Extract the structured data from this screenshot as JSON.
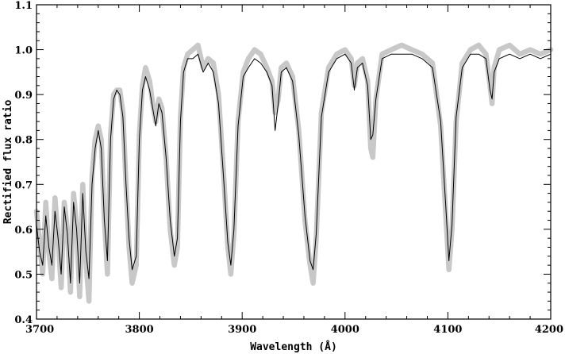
{
  "chart_data": {
    "type": "line",
    "title": "",
    "xlabel": "Wavelength (Å)",
    "ylabel": "Rectified flux ratio",
    "xlim": [
      3700,
      4200
    ],
    "ylim": [
      0.4,
      1.1
    ],
    "x_ticks": [
      3700,
      3800,
      3900,
      4000,
      4100,
      4200
    ],
    "x_tick_labels": [
      "3700",
      "3800",
      "3900",
      "4000",
      "4100",
      "4200"
    ],
    "y_ticks": [
      0.4,
      0.5,
      0.6,
      0.7,
      0.8,
      0.9,
      1.0,
      1.1
    ],
    "y_tick_labels": [
      "0.4",
      "0.5",
      "0.6",
      "0.7",
      "0.8",
      "0.9",
      "1.0",
      "1.1"
    ],
    "grid": false,
    "legend": "none",
    "colors": {
      "observed": "#c8c8c8",
      "model": "#000000"
    },
    "series": [
      {
        "style": "thick light gray",
        "x": [
          3700,
          3703,
          3706,
          3709,
          3712,
          3715,
          3718,
          3721,
          3724,
          3727,
          3730,
          3733,
          3736,
          3739,
          3742,
          3745,
          3748,
          3751,
          3754,
          3757,
          3760,
          3763,
          3766,
          3769,
          3772,
          3775,
          3778,
          3781,
          3784,
          3787,
          3790,
          3793,
          3797,
          3800,
          3803,
          3806,
          3810,
          3813,
          3816,
          3819,
          3822,
          3826,
          3830,
          3834,
          3837,
          3840,
          3843,
          3847,
          3852,
          3857,
          3862,
          3867,
          3872,
          3877,
          3882,
          3886,
          3889,
          3892,
          3896,
          3901,
          3906,
          3912,
          3918,
          3924,
          3929,
          3932,
          3935,
          3938,
          3943,
          3949,
          3955,
          3961,
          3966,
          3969,
          3972,
          3977,
          3984,
          3992,
          4000,
          4006,
          4009,
          4012,
          4017,
          4022,
          4025,
          4027,
          4030,
          4036,
          4045,
          4055,
          4065,
          4075,
          4085,
          4093,
          4098,
          4101,
          4104,
          4108,
          4114,
          4122,
          4130,
          4137,
          4141,
          4143,
          4145,
          4150,
          4160,
          4170,
          4180,
          4190,
          4200
        ],
        "values": [
          0.64,
          0.57,
          0.5,
          0.66,
          0.55,
          0.49,
          0.67,
          0.58,
          0.47,
          0.66,
          0.6,
          0.46,
          0.68,
          0.61,
          0.45,
          0.7,
          0.53,
          0.44,
          0.72,
          0.8,
          0.83,
          0.8,
          0.62,
          0.5,
          0.81,
          0.9,
          0.91,
          0.91,
          0.86,
          0.7,
          0.56,
          0.48,
          0.52,
          0.81,
          0.92,
          0.96,
          0.93,
          0.88,
          0.84,
          0.89,
          0.87,
          0.76,
          0.6,
          0.52,
          0.56,
          0.85,
          0.96,
          0.99,
          1.0,
          1.01,
          0.96,
          0.98,
          0.97,
          0.9,
          0.72,
          0.56,
          0.5,
          0.59,
          0.84,
          0.95,
          0.98,
          1.0,
          0.99,
          0.96,
          0.93,
          0.86,
          0.89,
          0.96,
          0.97,
          0.94,
          0.82,
          0.62,
          0.52,
          0.48,
          0.58,
          0.86,
          0.96,
          0.99,
          1.0,
          0.98,
          0.92,
          0.97,
          0.98,
          0.93,
          0.78,
          0.76,
          0.89,
          0.99,
          1.0,
          1.01,
          1.0,
          0.99,
          0.97,
          0.83,
          0.63,
          0.51,
          0.6,
          0.84,
          0.97,
          1.0,
          1.01,
          0.99,
          0.92,
          0.88,
          0.96,
          1.0,
          1.01,
          0.99,
          1.0,
          0.99,
          1.0
        ]
      },
      {
        "style": "thin black",
        "x": [
          3700,
          3703,
          3706,
          3709,
          3712,
          3715,
          3718,
          3721,
          3724,
          3727,
          3730,
          3733,
          3736,
          3739,
          3742,
          3745,
          3748,
          3751,
          3754,
          3757,
          3760,
          3763,
          3766,
          3769,
          3772,
          3775,
          3778,
          3781,
          3784,
          3787,
          3790,
          3793,
          3797,
          3800,
          3803,
          3806,
          3810,
          3813,
          3816,
          3819,
          3822,
          3826,
          3830,
          3834,
          3837,
          3840,
          3843,
          3847,
          3852,
          3857,
          3862,
          3867,
          3872,
          3877,
          3882,
          3886,
          3889,
          3892,
          3896,
          3901,
          3906,
          3912,
          3918,
          3924,
          3929,
          3932,
          3935,
          3938,
          3943,
          3949,
          3955,
          3961,
          3966,
          3969,
          3972,
          3977,
          3984,
          3992,
          4000,
          4006,
          4009,
          4012,
          4017,
          4022,
          4025,
          4027,
          4030,
          4036,
          4045,
          4055,
          4065,
          4075,
          4085,
          4093,
          4098,
          4101,
          4104,
          4108,
          4114,
          4122,
          4130,
          4137,
          4141,
          4143,
          4145,
          4150,
          4160,
          4170,
          4180,
          4190,
          4200
        ],
        "values": [
          0.61,
          0.55,
          0.52,
          0.63,
          0.56,
          0.52,
          0.64,
          0.58,
          0.5,
          0.65,
          0.59,
          0.48,
          0.66,
          0.6,
          0.48,
          0.68,
          0.55,
          0.49,
          0.7,
          0.78,
          0.82,
          0.78,
          0.62,
          0.53,
          0.8,
          0.89,
          0.91,
          0.9,
          0.85,
          0.7,
          0.58,
          0.51,
          0.54,
          0.8,
          0.91,
          0.94,
          0.91,
          0.87,
          0.83,
          0.88,
          0.86,
          0.76,
          0.62,
          0.54,
          0.58,
          0.84,
          0.95,
          0.98,
          0.98,
          0.99,
          0.95,
          0.97,
          0.95,
          0.88,
          0.71,
          0.57,
          0.52,
          0.6,
          0.83,
          0.94,
          0.96,
          0.98,
          0.97,
          0.95,
          0.92,
          0.82,
          0.88,
          0.95,
          0.96,
          0.93,
          0.81,
          0.63,
          0.53,
          0.51,
          0.59,
          0.85,
          0.95,
          0.98,
          0.99,
          0.97,
          0.91,
          0.96,
          0.97,
          0.92,
          0.8,
          0.81,
          0.89,
          0.98,
          0.99,
          0.99,
          0.99,
          0.98,
          0.96,
          0.84,
          0.65,
          0.53,
          0.61,
          0.85,
          0.96,
          0.99,
          0.99,
          0.98,
          0.91,
          0.89,
          0.95,
          0.98,
          0.99,
          0.98,
          0.99,
          0.98,
          0.99
        ]
      }
    ]
  }
}
